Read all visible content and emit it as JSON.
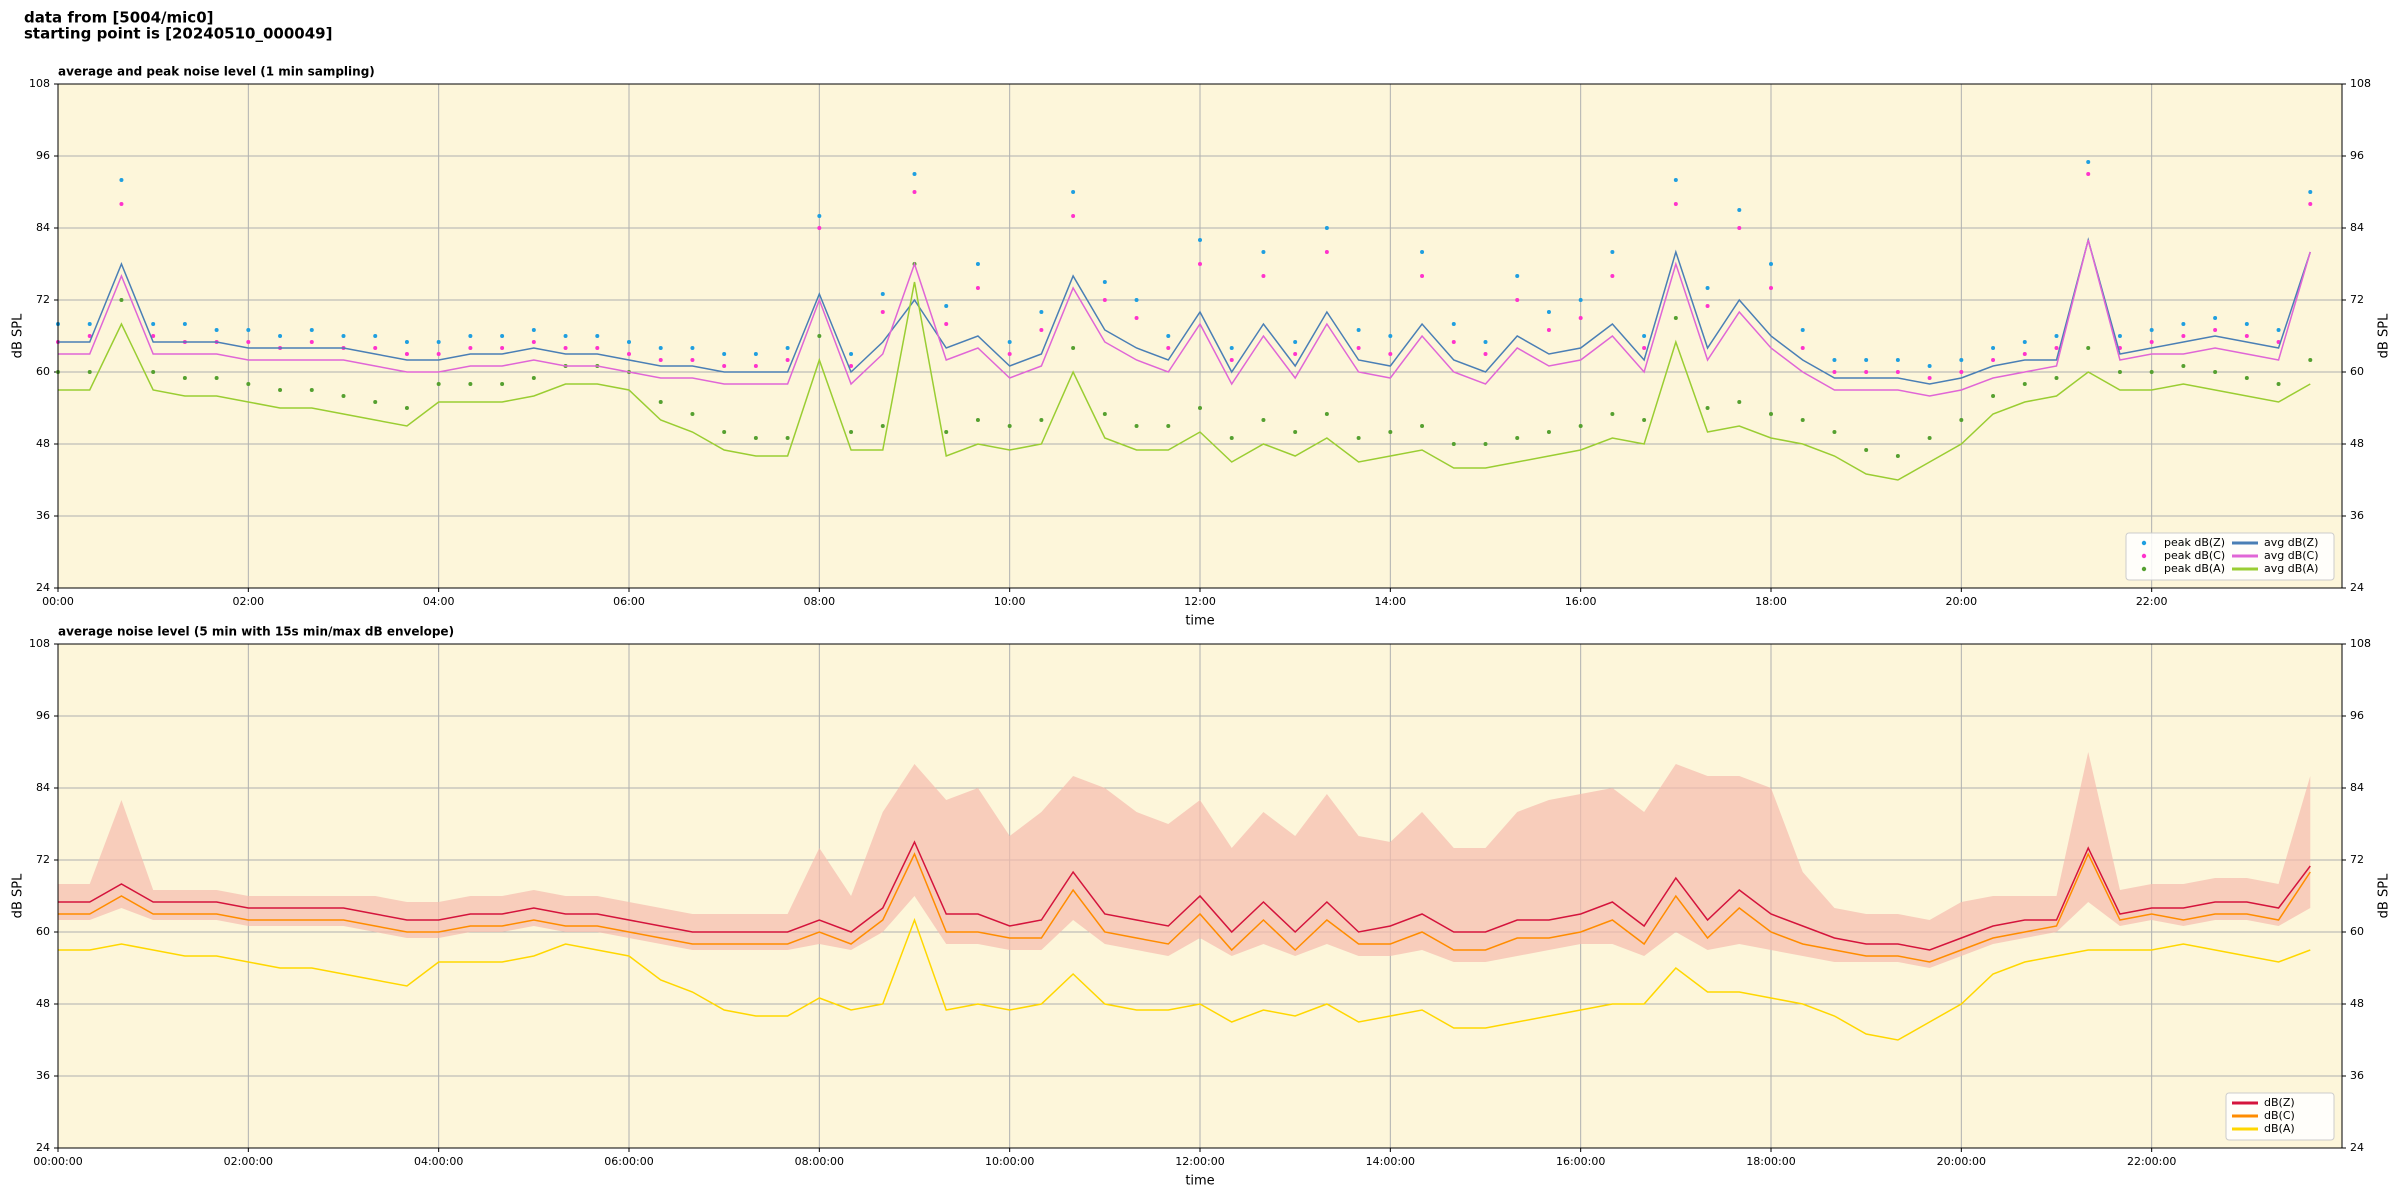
{
  "header": [
    "data from [5004/mic0]",
    "starting point is [20240510_000049]"
  ],
  "chart_data": [
    {
      "type": "line",
      "title": "average and peak noise level (1 min sampling)",
      "xlabel": "time",
      "ylabel": "dB SPL",
      "xlim": [
        0,
        1440
      ],
      "ylim": [
        24,
        108
      ],
      "yticks": [
        24,
        36,
        48,
        60,
        72,
        84,
        96,
        108
      ],
      "xticks": [
        {
          "value": 0,
          "label": "00:00"
        },
        {
          "value": 120,
          "label": "02:00"
        },
        {
          "value": 240,
          "label": "04:00"
        },
        {
          "value": 360,
          "label": "06:00"
        },
        {
          "value": 480,
          "label": "08:00"
        },
        {
          "value": 600,
          "label": "10:00"
        },
        {
          "value": 720,
          "label": "12:00"
        },
        {
          "value": 840,
          "label": "14:00"
        },
        {
          "value": 960,
          "label": "16:00"
        },
        {
          "value": 1080,
          "label": "18:00"
        },
        {
          "value": 1200,
          "label": "20:00"
        },
        {
          "value": 1320,
          "label": "22:00"
        }
      ],
      "grid": true,
      "legend": "lower right",
      "legend_columns": 2,
      "background": "#fdf6da",
      "x": [
        0,
        20,
        40,
        60,
        80,
        100,
        120,
        140,
        160,
        180,
        200,
        220,
        240,
        260,
        280,
        300,
        320,
        340,
        360,
        380,
        400,
        420,
        440,
        460,
        480,
        500,
        520,
        540,
        560,
        580,
        600,
        620,
        640,
        660,
        680,
        700,
        720,
        740,
        760,
        780,
        800,
        820,
        840,
        860,
        880,
        900,
        920,
        940,
        960,
        980,
        1000,
        1020,
        1040,
        1060,
        1080,
        1100,
        1120,
        1140,
        1160,
        1180,
        1200,
        1220,
        1240,
        1260,
        1280,
        1300,
        1320,
        1340,
        1360,
        1380,
        1400,
        1420
      ],
      "series": [
        {
          "name": "peak dB(Z)",
          "kind": "scatter",
          "color": "#1f9fe0",
          "values": [
            68,
            68,
            92,
            68,
            68,
            67,
            67,
            66,
            67,
            66,
            66,
            65,
            65,
            66,
            66,
            67,
            66,
            66,
            65,
            64,
            64,
            63,
            63,
            64,
            86,
            63,
            73,
            93,
            71,
            78,
            65,
            70,
            90,
            75,
            72,
            66,
            82,
            64,
            80,
            65,
            84,
            67,
            66,
            80,
            68,
            65,
            76,
            70,
            72,
            80,
            66,
            92,
            74,
            87,
            78,
            67,
            62,
            62,
            62,
            61,
            62,
            64,
            65,
            66,
            95,
            66,
            67,
            68,
            69,
            68,
            67,
            90
          ]
        },
        {
          "name": "peak dB(C)",
          "kind": "scatter",
          "color": "#ff33cc",
          "values": [
            65,
            66,
            88,
            66,
            65,
            65,
            65,
            64,
            65,
            64,
            64,
            63,
            63,
            64,
            64,
            65,
            64,
            64,
            63,
            62,
            62,
            61,
            61,
            62,
            84,
            61,
            70,
            90,
            68,
            74,
            63,
            67,
            86,
            72,
            69,
            64,
            78,
            62,
            76,
            63,
            80,
            64,
            63,
            76,
            65,
            63,
            72,
            67,
            69,
            76,
            64,
            88,
            71,
            84,
            74,
            64,
            60,
            60,
            60,
            59,
            60,
            62,
            63,
            64,
            93,
            64,
            65,
            66,
            67,
            66,
            65,
            88
          ]
        },
        {
          "name": "peak dB(A)",
          "kind": "scatter",
          "color": "#55a030",
          "values": [
            60,
            60,
            72,
            60,
            59,
            59,
            58,
            57,
            57,
            56,
            55,
            54,
            58,
            58,
            58,
            59,
            61,
            61,
            60,
            55,
            53,
            50,
            49,
            49,
            66,
            50,
            51,
            78,
            50,
            52,
            51,
            52,
            64,
            53,
            51,
            51,
            54,
            49,
            52,
            50,
            53,
            49,
            50,
            51,
            48,
            48,
            49,
            50,
            51,
            53,
            52,
            69,
            54,
            55,
            53,
            52,
            50,
            47,
            46,
            49,
            52,
            56,
            58,
            59,
            64,
            60,
            60,
            61,
            60,
            59,
            58,
            62
          ]
        },
        {
          "name": "avg dB(Z)",
          "kind": "line",
          "color": "#4a7fb5",
          "values": [
            65,
            65,
            78,
            65,
            65,
            65,
            64,
            64,
            64,
            64,
            63,
            62,
            62,
            63,
            63,
            64,
            63,
            63,
            62,
            61,
            61,
            60,
            60,
            60,
            73,
            60,
            65,
            72,
            64,
            66,
            61,
            63,
            76,
            67,
            64,
            62,
            70,
            60,
            68,
            61,
            70,
            62,
            61,
            68,
            62,
            60,
            66,
            63,
            64,
            68,
            62,
            80,
            64,
            72,
            66,
            62,
            59,
            59,
            59,
            58,
            59,
            61,
            62,
            62,
            82,
            63,
            64,
            65,
            66,
            65,
            64,
            80
          ]
        },
        {
          "name": "avg dB(C)",
          "kind": "line",
          "color": "#e066d6",
          "values": [
            63,
            63,
            76,
            63,
            63,
            63,
            62,
            62,
            62,
            62,
            61,
            60,
            60,
            61,
            61,
            62,
            61,
            61,
            60,
            59,
            59,
            58,
            58,
            58,
            72,
            58,
            63,
            78,
            62,
            64,
            59,
            61,
            74,
            65,
            62,
            60,
            68,
            58,
            66,
            59,
            68,
            60,
            59,
            66,
            60,
            58,
            64,
            61,
            62,
            66,
            60,
            78,
            62,
            70,
            64,
            60,
            57,
            57,
            57,
            56,
            57,
            59,
            60,
            61,
            82,
            62,
            63,
            63,
            64,
            63,
            62,
            80
          ]
        },
        {
          "name": "avg dB(A)",
          "kind": "line",
          "color": "#9acd32",
          "values": [
            57,
            57,
            68,
            57,
            56,
            56,
            55,
            54,
            54,
            53,
            52,
            51,
            55,
            55,
            55,
            56,
            58,
            58,
            57,
            52,
            50,
            47,
            46,
            46,
            62,
            47,
            47,
            75,
            46,
            48,
            47,
            48,
            60,
            49,
            47,
            47,
            50,
            45,
            48,
            46,
            49,
            45,
            46,
            47,
            44,
            44,
            45,
            46,
            47,
            49,
            48,
            65,
            50,
            51,
            49,
            48,
            46,
            43,
            42,
            45,
            48,
            53,
            55,
            56,
            60,
            57,
            57,
            58,
            57,
            56,
            55,
            58
          ]
        }
      ]
    },
    {
      "type": "line",
      "title": "average noise level (5 min with 15s min/max dB envelope)",
      "xlabel": "time",
      "ylabel": "dB SPL",
      "xlim": [
        0,
        1440
      ],
      "ylim": [
        24,
        108
      ],
      "yticks": [
        24,
        36,
        48,
        60,
        72,
        84,
        96,
        108
      ],
      "xticks": [
        {
          "value": 0,
          "label": "00:00:00"
        },
        {
          "value": 120,
          "label": "02:00:00"
        },
        {
          "value": 240,
          "label": "04:00:00"
        },
        {
          "value": 360,
          "label": "06:00:00"
        },
        {
          "value": 480,
          "label": "08:00:00"
        },
        {
          "value": 600,
          "label": "10:00:00"
        },
        {
          "value": 720,
          "label": "12:00:00"
        },
        {
          "value": 840,
          "label": "14:00:00"
        },
        {
          "value": 960,
          "label": "16:00:00"
        },
        {
          "value": 1080,
          "label": "18:00:00"
        },
        {
          "value": 1200,
          "label": "20:00:00"
        },
        {
          "value": 1320,
          "label": "22:00:00"
        }
      ],
      "grid": true,
      "legend": "lower right",
      "legend_columns": 1,
      "background": "#fdf6da",
      "x": [
        0,
        20,
        40,
        60,
        80,
        100,
        120,
        140,
        160,
        180,
        200,
        220,
        240,
        260,
        280,
        300,
        320,
        340,
        360,
        380,
        400,
        420,
        440,
        460,
        480,
        500,
        520,
        540,
        560,
        580,
        600,
        620,
        640,
        660,
        680,
        700,
        720,
        740,
        760,
        780,
        800,
        820,
        840,
        860,
        880,
        900,
        920,
        940,
        960,
        980,
        1000,
        1020,
        1040,
        1060,
        1080,
        1100,
        1120,
        1140,
        1160,
        1180,
        1200,
        1220,
        1240,
        1260,
        1280,
        1300,
        1320,
        1340,
        1360,
        1380,
        1400,
        1420
      ],
      "envelope": {
        "color": "#f5bcae",
        "high": [
          68,
          68,
          82,
          67,
          67,
          67,
          66,
          66,
          66,
          66,
          66,
          65,
          65,
          66,
          66,
          67,
          66,
          66,
          65,
          64,
          63,
          63,
          63,
          63,
          74,
          66,
          80,
          88,
          82,
          84,
          76,
          80,
          86,
          84,
          80,
          78,
          82,
          74,
          80,
          76,
          83,
          76,
          75,
          80,
          74,
          74,
          80,
          82,
          83,
          84,
          80,
          88,
          86,
          86,
          84,
          70,
          64,
          63,
          63,
          62,
          65,
          66,
          66,
          66,
          90,
          67,
          68,
          68,
          69,
          69,
          68,
          86
        ],
        "low": [
          62,
          62,
          64,
          62,
          62,
          62,
          61,
          61,
          61,
          61,
          60,
          59,
          59,
          60,
          60,
          61,
          60,
          60,
          59,
          58,
          57,
          57,
          57,
          57,
          58,
          57,
          60,
          66,
          58,
          58,
          57,
          57,
          62,
          58,
          57,
          56,
          59,
          56,
          58,
          56,
          58,
          56,
          56,
          57,
          55,
          55,
          56,
          57,
          58,
          58,
          56,
          60,
          57,
          58,
          57,
          56,
          55,
          55,
          55,
          54,
          56,
          58,
          59,
          60,
          65,
          61,
          62,
          61,
          62,
          62,
          61,
          64
        ]
      },
      "series": [
        {
          "name": "dB(Z)",
          "kind": "line",
          "color": "#d4143c",
          "values": [
            65,
            65,
            68,
            65,
            65,
            65,
            64,
            64,
            64,
            64,
            63,
            62,
            62,
            63,
            63,
            64,
            63,
            63,
            62,
            61,
            60,
            60,
            60,
            60,
            62,
            60,
            64,
            75,
            63,
            63,
            61,
            62,
            70,
            63,
            62,
            61,
            66,
            60,
            65,
            60,
            65,
            60,
            61,
            63,
            60,
            60,
            62,
            62,
            63,
            65,
            61,
            69,
            62,
            67,
            63,
            61,
            59,
            58,
            58,
            57,
            59,
            61,
            62,
            62,
            74,
            63,
            64,
            64,
            65,
            65,
            64,
            71
          ]
        },
        {
          "name": "dB(C)",
          "kind": "line",
          "color": "#ff8c00",
          "values": [
            63,
            63,
            66,
            63,
            63,
            63,
            62,
            62,
            62,
            62,
            61,
            60,
            60,
            61,
            61,
            62,
            61,
            61,
            60,
            59,
            58,
            58,
            58,
            58,
            60,
            58,
            62,
            73,
            60,
            60,
            59,
            59,
            67,
            60,
            59,
            58,
            63,
            57,
            62,
            57,
            62,
            58,
            58,
            60,
            57,
            57,
            59,
            59,
            60,
            62,
            58,
            66,
            59,
            64,
            60,
            58,
            57,
            56,
            56,
            55,
            57,
            59,
            60,
            61,
            73,
            62,
            63,
            62,
            63,
            63,
            62,
            70
          ]
        },
        {
          "name": "dB(A)",
          "kind": "line",
          "color": "#ffd700",
          "values": [
            57,
            57,
            58,
            57,
            56,
            56,
            55,
            54,
            54,
            53,
            52,
            51,
            55,
            55,
            55,
            56,
            58,
            57,
            56,
            52,
            50,
            47,
            46,
            46,
            49,
            47,
            48,
            62,
            47,
            48,
            47,
            48,
            53,
            48,
            47,
            47,
            48,
            45,
            47,
            46,
            48,
            45,
            46,
            47,
            44,
            44,
            45,
            46,
            47,
            48,
            48,
            54,
            50,
            50,
            49,
            48,
            46,
            43,
            42,
            45,
            48,
            53,
            55,
            56,
            57,
            57,
            57,
            58,
            57,
            56,
            55,
            57
          ]
        }
      ]
    }
  ]
}
